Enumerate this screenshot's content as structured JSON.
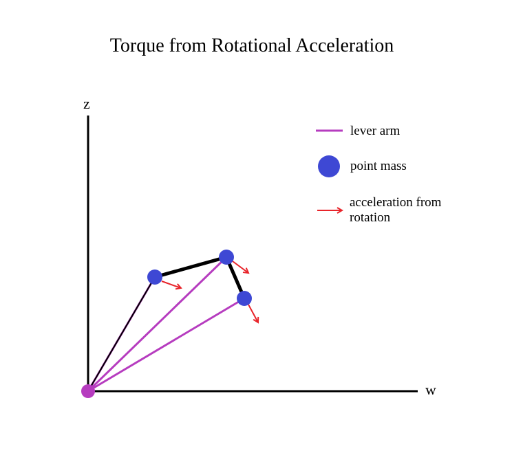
{
  "title": "Torque from Rotational Acceleration",
  "axes": {
    "x_label": "w",
    "y_label": "z"
  },
  "legend": {
    "lever_arm": "lever arm",
    "point_mass": "point mass",
    "acceleration_line1": "acceleration from",
    "acceleration_line2": "rotation"
  },
  "colors": {
    "lever_arm": "#b63cbf",
    "point_mass": "#3e48d4",
    "acceleration": "#e8242a",
    "link": "#000000",
    "axis": "#000000",
    "pivot": "#b63cbf"
  }
}
